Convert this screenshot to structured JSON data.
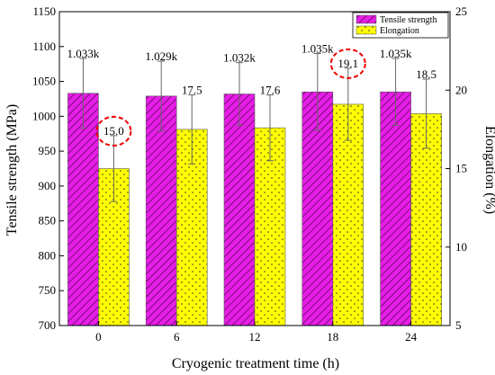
{
  "chart_data": {
    "type": "bar",
    "xlabel": "Cryogenic treatment time (h)",
    "ylabel_left": "Tensile strength (MPa)",
    "ylabel_right": "Elongation (%)",
    "categories": [
      "0",
      "6",
      "12",
      "18",
      "24"
    ],
    "ylim_left": [
      700,
      1150
    ],
    "ylim_right": [
      5,
      25
    ],
    "left_ticks": [
      "700",
      "750",
      "800",
      "850",
      "900",
      "950",
      "1000",
      "1050",
      "1100",
      "1150"
    ],
    "right_ticks": [
      "5",
      "10",
      "15",
      "20",
      "25"
    ],
    "series": [
      {
        "name": "Tensile strength",
        "axis": "left",
        "color": "#e61ee6",
        "pattern": "diagonal-hatch",
        "values": [
          1033,
          1029,
          1032,
          1035,
          1035
        ],
        "errors": [
          50,
          50,
          45,
          55,
          48
        ],
        "labels": [
          "1.033k",
          "1.029k",
          "1.032k",
          "1.035k",
          "1.035k"
        ]
      },
      {
        "name": "Elongation",
        "axis": "right",
        "color": "#ffff00",
        "pattern": "dots",
        "values": [
          15.0,
          17.5,
          17.6,
          19.1,
          18.5
        ],
        "errors": [
          2.1,
          2.2,
          2.1,
          2.3,
          2.2
        ],
        "labels": [
          "15.0",
          "17.5",
          "17.6",
          "19.1",
          "18.5"
        ]
      }
    ],
    "highlighted": [
      {
        "series": 1,
        "index": 0
      },
      {
        "series": 1,
        "index": 3
      }
    ],
    "legend_position": "top-right",
    "grid": false
  }
}
